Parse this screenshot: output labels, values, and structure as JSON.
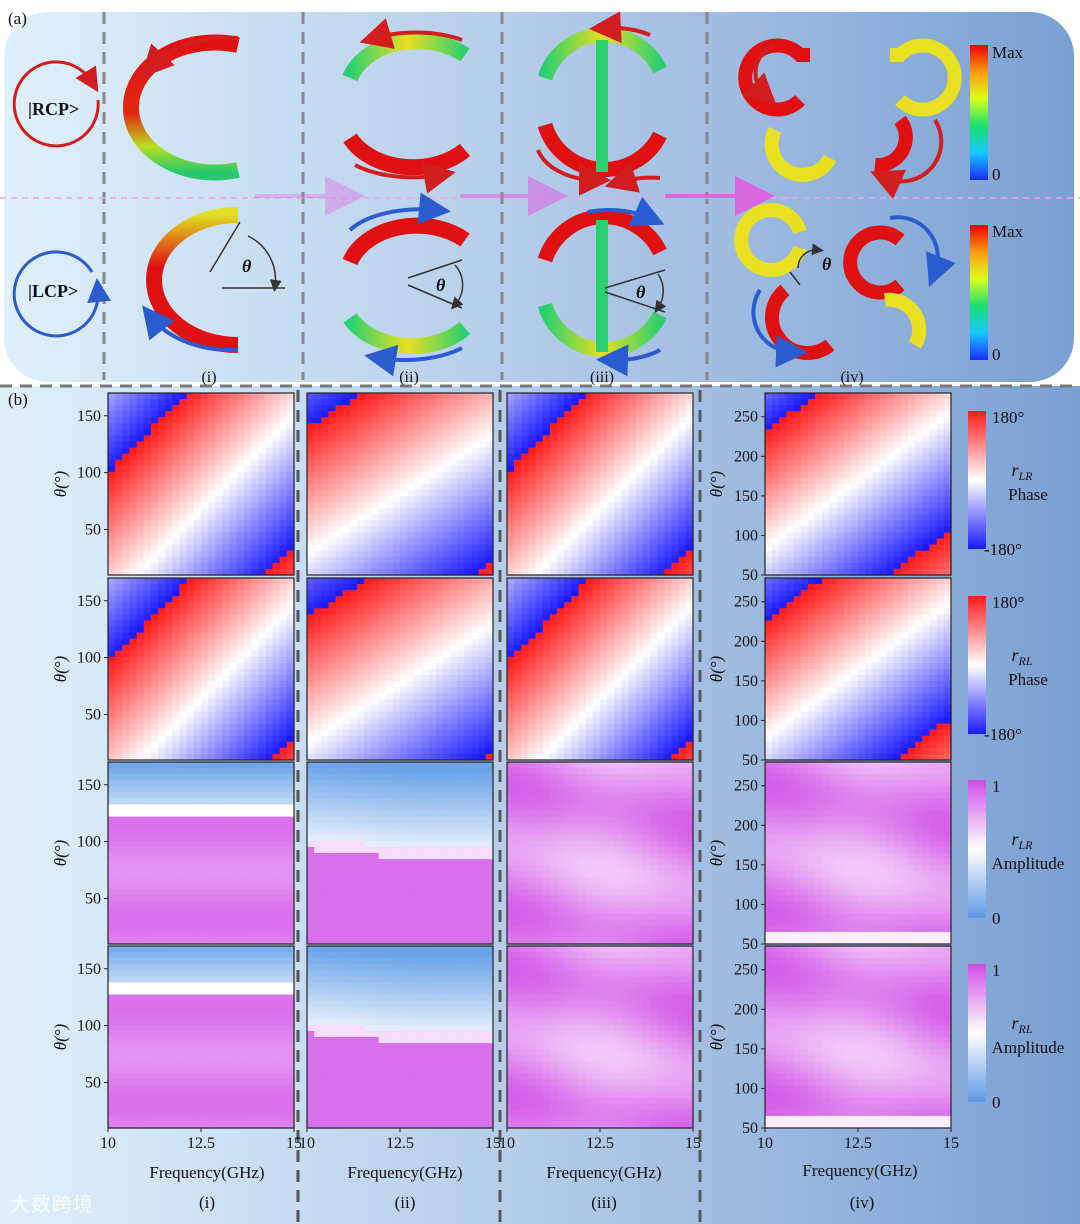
{
  "panel_a": {
    "label": "(a)",
    "rcp_label": "|RCP>",
    "lcp_label": "|LCP>",
    "theta_symbol": "θ",
    "column_labels": [
      "(i)",
      "(ii)",
      "(iii)",
      "(iv)"
    ],
    "colorbar": {
      "max_label": "Max",
      "min_label": "0"
    }
  },
  "panel_b": {
    "label": "(b)",
    "y_axis_label": "θ(°)",
    "x_axis_label": "Frequency(GHz)",
    "column_labels": [
      "(i)",
      "(ii)",
      "(iii)",
      "(iv)"
    ],
    "x_ticks": [
      "10",
      "12.5",
      "15"
    ],
    "y_ticks_col123": [
      "50",
      "100",
      "150"
    ],
    "y_ticks_col4": [
      "50",
      "100",
      "150",
      "200",
      "250"
    ],
    "colorbars": [
      {
        "name": "r",
        "sub": "LR",
        "quantity": "Phase",
        "max": "180°",
        "min": "-180°"
      },
      {
        "name": "r",
        "sub": "RL",
        "quantity": "Phase",
        "max": "180°",
        "min": "-180°"
      },
      {
        "name": "r",
        "sub": "LR",
        "quantity": "Amplitude",
        "max": "1",
        "min": "0"
      },
      {
        "name": "r",
        "sub": "RL",
        "quantity": "Amplitude",
        "max": "1",
        "min": "0"
      }
    ]
  },
  "watermark": "大数跨境",
  "colors": {
    "field_max": "#e60000",
    "field_min": "#1a3cff",
    "rcp_arrow": "#d21e1e",
    "lcp_arrow": "#2a5ccf",
    "phase_pos": "#ff1a1a",
    "phase_neg": "#1a1aff",
    "amp_high": "#d04ce6",
    "amp_low": "#5c9ae6"
  },
  "chart_data": [
    {
      "type": "heatmap",
      "title": "rLR Phase (i)",
      "x": [
        10,
        15
      ],
      "y": [
        10,
        170
      ],
      "zlim": [
        -180,
        180
      ]
    },
    {
      "type": "heatmap",
      "title": "rLR Phase (ii)",
      "x": [
        10,
        15
      ],
      "y": [
        10,
        170
      ],
      "zlim": [
        -180,
        180
      ]
    },
    {
      "type": "heatmap",
      "title": "rLR Phase (iii)",
      "x": [
        10,
        15
      ],
      "y": [
        10,
        170
      ],
      "zlim": [
        -180,
        180
      ]
    },
    {
      "type": "heatmap",
      "title": "rLR Phase (iv)",
      "x": [
        10,
        15
      ],
      "y": [
        50,
        280
      ],
      "zlim": [
        -180,
        180
      ]
    },
    {
      "type": "heatmap",
      "title": "rRL Phase (i)",
      "x": [
        10,
        15
      ],
      "y": [
        10,
        170
      ],
      "zlim": [
        -180,
        180
      ]
    },
    {
      "type": "heatmap",
      "title": "rRL Phase (ii)",
      "x": [
        10,
        15
      ],
      "y": [
        10,
        170
      ],
      "zlim": [
        -180,
        180
      ]
    },
    {
      "type": "heatmap",
      "title": "rRL Phase (iii)",
      "x": [
        10,
        15
      ],
      "y": [
        10,
        170
      ],
      "zlim": [
        -180,
        180
      ]
    },
    {
      "type": "heatmap",
      "title": "rRL Phase (iv)",
      "x": [
        10,
        15
      ],
      "y": [
        50,
        280
      ],
      "zlim": [
        -180,
        180
      ]
    },
    {
      "type": "heatmap",
      "title": "rLR Amplitude (i)",
      "x": [
        10,
        15
      ],
      "y": [
        10,
        170
      ],
      "zlim": [
        0,
        1
      ]
    },
    {
      "type": "heatmap",
      "title": "rLR Amplitude (ii)",
      "x": [
        10,
        15
      ],
      "y": [
        10,
        170
      ],
      "zlim": [
        0,
        1
      ]
    },
    {
      "type": "heatmap",
      "title": "rLR Amplitude (iii)",
      "x": [
        10,
        15
      ],
      "y": [
        10,
        170
      ],
      "zlim": [
        0,
        1
      ]
    },
    {
      "type": "heatmap",
      "title": "rLR Amplitude (iv)",
      "x": [
        10,
        15
      ],
      "y": [
        50,
        280
      ],
      "zlim": [
        0,
        1
      ]
    },
    {
      "type": "heatmap",
      "title": "rRL Amplitude (i)",
      "x": [
        10,
        15
      ],
      "y": [
        10,
        170
      ],
      "zlim": [
        0,
        1
      ]
    },
    {
      "type": "heatmap",
      "title": "rRL Amplitude (ii)",
      "x": [
        10,
        15
      ],
      "y": [
        10,
        170
      ],
      "zlim": [
        0,
        1
      ]
    },
    {
      "type": "heatmap",
      "title": "rRL Amplitude (iii)",
      "x": [
        10,
        15
      ],
      "y": [
        10,
        170
      ],
      "zlim": [
        0,
        1
      ]
    },
    {
      "type": "heatmap",
      "title": "rRL Amplitude (iv)",
      "x": [
        10,
        15
      ],
      "y": [
        50,
        280
      ],
      "zlim": [
        0,
        1
      ]
    }
  ]
}
